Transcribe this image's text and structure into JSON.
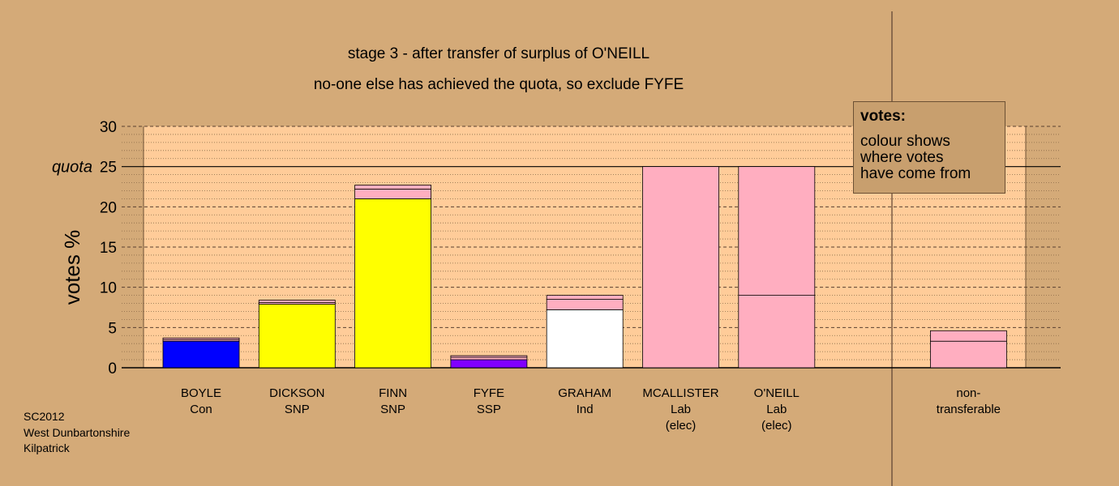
{
  "chart_data": {
    "type": "bar",
    "stacked": true,
    "title": "stage 3 - after transfer of surplus of O'NEILL",
    "subtitle": "no-one else has achieved the quota, so exclude FYFE",
    "ylabel": "votes %",
    "ylim": [
      0,
      30
    ],
    "yticks": [
      "0",
      "5",
      "10",
      "15",
      "20",
      "25",
      "30"
    ],
    "quota_label": "quota",
    "quota_value": 25,
    "grid": true,
    "categories": [
      {
        "name": "BOYLE",
        "party": "Con",
        "note": ""
      },
      {
        "name": "DICKSON",
        "party": "SNP",
        "note": ""
      },
      {
        "name": "FINN",
        "party": "SNP",
        "note": ""
      },
      {
        "name": "FYFE",
        "party": "SSP",
        "note": ""
      },
      {
        "name": "GRAHAM",
        "party": "Ind",
        "note": ""
      },
      {
        "name": "MCALLISTER",
        "party": "Lab",
        "note": "(elec)"
      },
      {
        "name": "O'NEILL",
        "party": "Lab",
        "note": "(elec)"
      },
      {
        "name": "",
        "party": "",
        "note": ""
      },
      {
        "name": "non-",
        "party": "transferable",
        "note": ""
      }
    ],
    "bars": [
      [
        {
          "value": 3.3,
          "color": "#0000ff"
        },
        {
          "value": 0.2,
          "color": "#ffaec0"
        },
        {
          "value": 0.2,
          "color": "#ffaec0"
        }
      ],
      [
        {
          "value": 7.9,
          "color": "#ffff00"
        },
        {
          "value": 0.2,
          "color": "#ffaec0"
        },
        {
          "value": 0.3,
          "color": "#ffaec0"
        }
      ],
      [
        {
          "value": 21.0,
          "color": "#ffff00"
        },
        {
          "value": 1.2,
          "color": "#ffaec0"
        },
        {
          "value": 0.5,
          "color": "#ffaec0"
        }
      ],
      [
        {
          "value": 1.0,
          "color": "#8000ff"
        },
        {
          "value": 0.3,
          "color": "#ffaec0"
        },
        {
          "value": 0.2,
          "color": "#ffaec0"
        }
      ],
      [
        {
          "value": 7.2,
          "color": "#ffffff"
        },
        {
          "value": 1.3,
          "color": "#ffaec0"
        },
        {
          "value": 0.5,
          "color": "#ffaec0"
        }
      ],
      [
        {
          "value": 25.0,
          "color": "#ffaec0"
        }
      ],
      [
        {
          "value": 9.0,
          "color": "#ffaec0"
        },
        {
          "value": 16.0,
          "color": "#ffaec0"
        }
      ],
      [],
      [
        {
          "value": 3.3,
          "color": "#ffaec0"
        },
        {
          "value": 1.3,
          "color": "#ffaec0"
        }
      ]
    ]
  },
  "legend": {
    "heading": "votes:",
    "line1": "colour shows",
    "line2": "where votes",
    "line3": "have come from"
  },
  "footer": {
    "line1": "SC2012",
    "line2": "West Dunbartonshire",
    "line3": "Kilpatrick"
  }
}
